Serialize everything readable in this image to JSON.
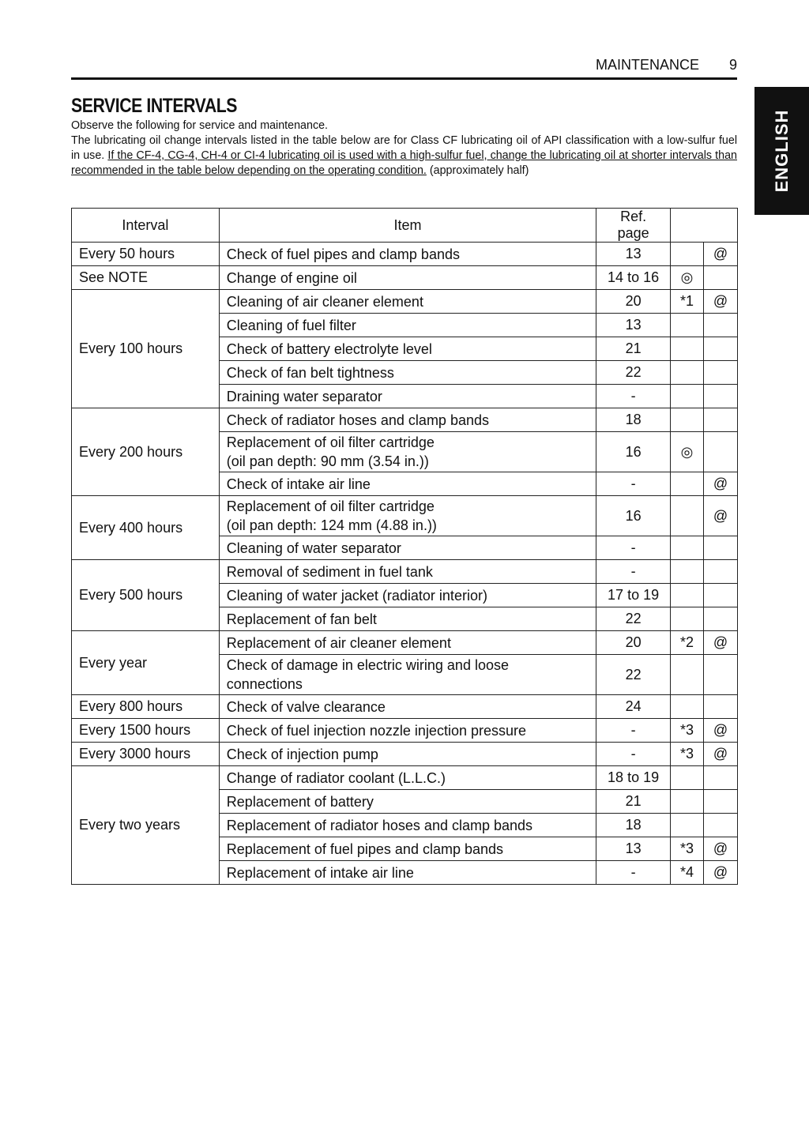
{
  "header": {
    "section": "MAINTENANCE",
    "page": "9"
  },
  "side_tab": "ENGLISH",
  "title": "SERVICE INTERVALS",
  "intro": {
    "line1": "Observe the following for service and maintenance.",
    "p2_start": "The lubricating oil change intervals listed in the table below are for Class CF lubricating oil of API classification with a low-sulfur fuel in use. ",
    "p2_underlined": "If the CF-4, CG-4, CH-4 or CI-4 lubricating oil is used with a high-sulfur fuel, change the lubricating oil at shorter intervals than recommended in the table below depending on the operating condition.",
    "p2_end": " (approximately half)"
  },
  "table": {
    "headers": [
      "Interval",
      "Item",
      "Ref. page",
      ""
    ],
    "groups": [
      {
        "interval": "Every 50 hours",
        "rows": [
          {
            "item": "Check of fuel pipes and clamp bands",
            "ref": "13",
            "mark": "",
            "at": "@"
          }
        ]
      },
      {
        "interval": "See NOTE",
        "rows": [
          {
            "item": "Change of engine oil",
            "ref": "14 to 16",
            "mark": "◎",
            "at": ""
          }
        ]
      },
      {
        "interval": "Every 100 hours",
        "rows": [
          {
            "item": "Cleaning of air cleaner element",
            "ref": "20",
            "mark": "*1",
            "at": "@"
          },
          {
            "item": "Cleaning of fuel filter",
            "ref": "13",
            "mark": "",
            "at": ""
          },
          {
            "item": "Check of battery electrolyte level",
            "ref": "21",
            "mark": "",
            "at": ""
          },
          {
            "item": "Check of fan belt tightness",
            "ref": "22",
            "mark": "",
            "at": ""
          },
          {
            "item": "Draining water separator",
            "ref": "-",
            "mark": "",
            "at": ""
          }
        ]
      },
      {
        "interval": "Every 200 hours",
        "rows": [
          {
            "item": "Check of radiator hoses and clamp bands",
            "ref": "18",
            "mark": "",
            "at": ""
          },
          {
            "item": "Replacement of oil filter cartridge\n(oil pan depth: 90 mm (3.54 in.))",
            "ref": "16",
            "mark": "◎",
            "at": ""
          },
          {
            "item": "Check of intake air line",
            "ref": "-",
            "mark": "",
            "at": "@"
          }
        ]
      },
      {
        "interval": "Every 400 hours",
        "rows": [
          {
            "item": "Replacement of oil filter cartridge\n(oil pan depth: 124 mm (4.88 in.))",
            "ref": "16",
            "mark": "",
            "at": "@"
          },
          {
            "item": "Cleaning of water separator",
            "ref": "-",
            "mark": "",
            "at": ""
          }
        ]
      },
      {
        "interval": "Every 500 hours",
        "rows": [
          {
            "item": "Removal of sediment in fuel tank",
            "ref": "-",
            "mark": "",
            "at": ""
          },
          {
            "item": "Cleaning of water jacket (radiator interior)",
            "ref": "17 to 19",
            "mark": "",
            "at": ""
          },
          {
            "item": "Replacement of fan belt",
            "ref": "22",
            "mark": "",
            "at": ""
          }
        ]
      },
      {
        "interval": "Every year",
        "rows": [
          {
            "item": "Replacement of air cleaner element",
            "ref": "20",
            "mark": "*2",
            "at": "@"
          },
          {
            "item": "Check of damage in electric wiring and loose\nconnections",
            "ref": "22",
            "mark": "",
            "at": ""
          }
        ]
      },
      {
        "interval": "Every 800 hours",
        "rows": [
          {
            "item": "Check of valve clearance",
            "ref": "24",
            "mark": "",
            "at": ""
          }
        ]
      },
      {
        "interval": "Every 1500 hours",
        "rows": [
          {
            "item": "Check of fuel injection nozzle injection pressure",
            "ref": "-",
            "mark": "*3",
            "at": "@"
          }
        ]
      },
      {
        "interval": "Every 3000 hours",
        "rows": [
          {
            "item": "Check of injection pump",
            "ref": "-",
            "mark": "*3",
            "at": "@"
          }
        ]
      },
      {
        "interval": "Every two years",
        "rows": [
          {
            "item": "Change of radiator coolant (L.L.C.)",
            "ref": "18 to 19",
            "mark": "",
            "at": ""
          },
          {
            "item": "Replacement of battery",
            "ref": "21",
            "mark": "",
            "at": ""
          },
          {
            "item": "Replacement of radiator hoses and clamp bands",
            "ref": "18",
            "mark": "",
            "at": ""
          },
          {
            "item": "Replacement of fuel pipes and clamp bands",
            "ref": "13",
            "mark": "*3",
            "at": "@"
          },
          {
            "item": "Replacement of intake air line",
            "ref": "-",
            "mark": "*4",
            "at": "@"
          }
        ]
      }
    ]
  }
}
